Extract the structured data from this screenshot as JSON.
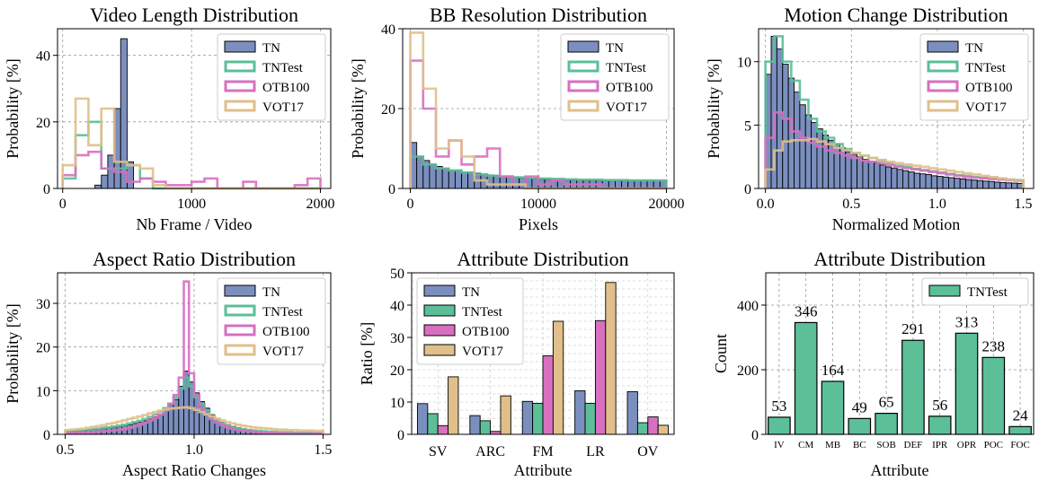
{
  "colors": {
    "TN": "#7b8fbf",
    "TNTest": "#5bbf98",
    "OTB100": "#d86fc0",
    "VOT17": "#e0bf8a"
  },
  "chart_data": [
    {
      "type": "histogram",
      "title": "Video Length Distribution",
      "xlabel": "Nb Frame / Video",
      "ylabel": "Probability [%]",
      "xlim": [
        -40,
        2080
      ],
      "ylim": [
        0,
        48
      ],
      "xticks": [
        0,
        1000,
        2000
      ],
      "yticks": [
        0,
        20,
        40
      ],
      "legend": [
        "TN",
        "TNTest",
        "OTB100",
        "VOT17"
      ],
      "legend_position": "top-right",
      "grid": true,
      "series": [
        {
          "name": "TN",
          "style": "filled",
          "bin_width": 50,
          "x_start": 250,
          "values": [
            1,
            4,
            10,
            24,
            45,
            8
          ]
        },
        {
          "name": "TNTest",
          "style": "step",
          "bin_width": 100,
          "x_start": 0,
          "values": [
            3,
            16,
            20,
            6,
            6,
            7,
            3,
            0,
            0,
            0,
            0,
            0,
            0,
            0,
            0,
            0,
            0,
            0,
            0,
            0
          ]
        },
        {
          "name": "OTB100",
          "style": "step",
          "bin_width": 100,
          "x_start": 0,
          "values": [
            4,
            10,
            11,
            6,
            5,
            2,
            3,
            2,
            1,
            1,
            2,
            3,
            0,
            0,
            2,
            0,
            0,
            0,
            1,
            3
          ]
        },
        {
          "name": "VOT17",
          "style": "step",
          "bin_width": 100,
          "x_start": 0,
          "values": [
            7,
            27,
            13,
            24,
            8,
            7,
            6,
            1,
            0,
            0,
            0,
            0,
            0,
            0,
            0,
            0,
            0,
            0,
            0,
            0
          ]
        }
      ]
    },
    {
      "type": "histogram",
      "title": "BB Resolution Distribution",
      "xlabel": "Pixels",
      "ylabel": "Probability [%]",
      "xlim": [
        -600,
        20600
      ],
      "ylim": [
        0,
        40
      ],
      "xticks": [
        0,
        10000,
        20000
      ],
      "yticks": [
        0,
        20,
        40
      ],
      "legend": [
        "TN",
        "TNTest",
        "OTB100",
        "VOT17"
      ],
      "legend_position": "top-right",
      "grid": true,
      "series": [
        {
          "name": "TN",
          "style": "filled",
          "bin_width": 500,
          "x_start": 0,
          "values": [
            11.5,
            8,
            7,
            6,
            5.5,
            5,
            4.5,
            4.5,
            4,
            4,
            3.8,
            3.6,
            3.4,
            3.2,
            3,
            3,
            2.8,
            2.6,
            2.5,
            2.4,
            2.3,
            2.3,
            2.2,
            2.2,
            2.1,
            2.1,
            2,
            2,
            2,
            2,
            2,
            2,
            2,
            2,
            2,
            2,
            2,
            2,
            2,
            2
          ]
        },
        {
          "name": "TNTest",
          "style": "step",
          "bin_width": 1000,
          "x_start": 0,
          "values": [
            8,
            6,
            5,
            4.5,
            4,
            3.5,
            3.2,
            3,
            2.8,
            2.6,
            2.5,
            2.4,
            2.3,
            2.2,
            2.2,
            2.1,
            2.1,
            2,
            2,
            2
          ]
        },
        {
          "name": "OTB100",
          "style": "step",
          "bin_width": 1000,
          "x_start": 0,
          "values": [
            32,
            20,
            8,
            12,
            6,
            8,
            10,
            3,
            1,
            3,
            1,
            2,
            1,
            1,
            1,
            0,
            0,
            0,
            0,
            0
          ]
        },
        {
          "name": "VOT17",
          "style": "step",
          "bin_width": 1000,
          "x_start": 0,
          "values": [
            39,
            25,
            10,
            12,
            8,
            2,
            1,
            1,
            1,
            0,
            0,
            0,
            0,
            0,
            0,
            0,
            0,
            0,
            0,
            0
          ]
        }
      ]
    },
    {
      "type": "histogram",
      "title": "Motion Change Distribution",
      "xlabel": "Normalized Motion",
      "ylabel": "Probability [%]",
      "xlim": [
        -0.04,
        1.56
      ],
      "ylim": [
        0,
        12.6
      ],
      "xticks": [
        0.0,
        0.5,
        1.0,
        1.5
      ],
      "yticks": [
        0,
        5,
        10
      ],
      "legend": [
        "TN",
        "TNTest",
        "OTB100",
        "VOT17"
      ],
      "legend_position": "top-right",
      "grid": true,
      "series": [
        {
          "name": "TN",
          "style": "filled",
          "bin_width": 0.0333,
          "x_start": 0,
          "values": [
            9,
            12,
            11,
            9.8,
            8.7,
            7.6,
            6.6,
            5.8,
            5.2,
            4.7,
            4.2,
            3.8,
            3.5,
            3.2,
            2.9,
            2.7,
            2.5,
            2.3,
            2.15,
            2.0,
            1.85,
            1.7,
            1.6,
            1.5,
            1.4,
            1.3,
            1.2,
            1.15,
            1.1,
            1.0,
            0.95,
            0.9,
            0.85,
            0.8,
            0.75,
            0.7,
            0.66,
            0.62,
            0.58,
            0.55,
            0.5,
            0.47,
            0.44,
            0.42,
            0.4
          ]
        },
        {
          "name": "TNTest",
          "style": "step",
          "bin_width": 0.05,
          "x_start": 0,
          "values": [
            10,
            12,
            10,
            8.5,
            7,
            5.5,
            4.5,
            4,
            3.5,
            3.1,
            2.8,
            2.6,
            2.4,
            2.2,
            2.0,
            1.8,
            1.7,
            1.55,
            1.45,
            1.35,
            1.25,
            1.15,
            1.05,
            1.0,
            0.9,
            0.85,
            0.8,
            0.75,
            0.7,
            0.65
          ]
        },
        {
          "name": "OTB100",
          "style": "step",
          "bin_width": 0.05,
          "x_start": 0,
          "values": [
            4,
            6,
            5.5,
            4.5,
            4,
            3.6,
            3.3,
            3.0,
            2.8,
            2.6,
            2.4,
            2.2,
            2.1,
            2.0,
            1.85,
            1.7,
            1.6,
            1.5,
            1.4,
            1.3,
            1.2,
            1.1,
            1.0,
            0.9,
            0.85,
            0.8,
            0.75,
            0.7,
            0.65,
            0.6
          ]
        },
        {
          "name": "VOT17",
          "style": "step",
          "bin_width": 0.05,
          "x_start": 0,
          "values": [
            1.5,
            3,
            3.7,
            3.8,
            3.8,
            3.9,
            3.7,
            3.5,
            3.2,
            3.0,
            2.8,
            2.6,
            2.4,
            2.25,
            2.1,
            2.0,
            1.9,
            1.8,
            1.7,
            1.6,
            1.5,
            1.4,
            1.3,
            1.2,
            1.1,
            1.0,
            0.9,
            0.8,
            0.7,
            0.6
          ]
        }
      ]
    },
    {
      "type": "histogram",
      "title": "Aspect Ratio Distribution",
      "xlabel": "Aspect Ratio Changes",
      "ylabel": "Probability [%]",
      "xlim": [
        0.47,
        1.53
      ],
      "ylim": [
        0,
        37
      ],
      "xticks": [
        0.5,
        1.0,
        1.5
      ],
      "yticks": [
        0,
        10,
        20,
        30
      ],
      "legend": [
        "TN",
        "TNTest",
        "OTB100",
        "VOT17"
      ],
      "legend_position": "top-right",
      "grid": true,
      "series": [
        {
          "name": "TN",
          "style": "filled",
          "bin_width": 0.02,
          "x_start": 0.5,
          "values": [
            0.6,
            0.7,
            0.8,
            0.9,
            1.0,
            1.1,
            1.2,
            1.3,
            1.5,
            1.6,
            1.8,
            2.0,
            2.2,
            2.5,
            2.8,
            3.1,
            3.5,
            4.0,
            4.6,
            5.5,
            6.8,
            8.0,
            11.0,
            14.5,
            12.0,
            9.5,
            7.5,
            6.0,
            4.5,
            3.5,
            2.8,
            2.2,
            1.8,
            1.5,
            1.2,
            1.0,
            0.8,
            0.7,
            0.6,
            0.5,
            0.5,
            0.4,
            0.4,
            0.3,
            0.3,
            0.3,
            0.3,
            0.2,
            0.2,
            0.2
          ]
        },
        {
          "name": "TNTest",
          "style": "step",
          "bin_width": 0.02,
          "x_start": 0.5,
          "values": [
            0.7,
            0.8,
            0.9,
            1.0,
            1.1,
            1.2,
            1.3,
            1.5,
            1.6,
            1.8,
            2.0,
            2.2,
            2.5,
            2.8,
            3.1,
            3.5,
            4.0,
            4.5,
            5.2,
            6.0,
            7.0,
            8.5,
            10.5,
            13.0,
            11.0,
            8.5,
            7.0,
            5.5,
            4.2,
            3.3,
            2.6,
            2.1,
            1.7,
            1.4,
            1.2,
            1.0,
            0.9,
            0.8,
            0.7,
            0.6,
            0.6,
            0.5,
            0.5,
            0.5,
            0.4,
            0.4,
            0.4,
            0.4,
            0.3,
            0.3
          ]
        },
        {
          "name": "OTB100",
          "style": "step",
          "bin_width": 0.02,
          "x_start": 0.5,
          "values": [
            0.3,
            0.3,
            0.3,
            0.4,
            0.4,
            0.5,
            0.6,
            0.7,
            0.8,
            0.9,
            1.0,
            1.2,
            1.5,
            1.8,
            2.2,
            2.7,
            3.2,
            3.8,
            4.5,
            5.5,
            7.0,
            9.0,
            13.0,
            35.0,
            14.0,
            9.0,
            6.0,
            4.5,
            3.5,
            2.7,
            2.1,
            1.6,
            1.3,
            1.0,
            0.8,
            0.7,
            0.6,
            0.5,
            0.4,
            0.4,
            0.3,
            0.3,
            0.3,
            0.2,
            0.2,
            0.2,
            0.2,
            0.2,
            0.2,
            0.2
          ]
        },
        {
          "name": "VOT17",
          "style": "step",
          "bin_width": 0.02,
          "x_start": 0.5,
          "values": [
            1.0,
            1.1,
            1.2,
            1.3,
            1.5,
            1.7,
            1.9,
            2.1,
            2.4,
            2.6,
            2.9,
            3.2,
            3.5,
            3.8,
            4.1,
            4.4,
            4.8,
            5.1,
            5.4,
            5.7,
            5.9,
            6.0,
            6.1,
            6.2,
            6.0,
            5.6,
            5.1,
            4.6,
            4.1,
            3.6,
            3.2,
            2.8,
            2.5,
            2.2,
            2.0,
            1.8,
            1.6,
            1.5,
            1.4,
            1.3,
            1.2,
            1.1,
            1.1,
            1.0,
            1.0,
            0.9,
            0.9,
            0.9,
            0.8,
            0.8
          ]
        }
      ]
    },
    {
      "type": "bar",
      "title": "Attribute Distribution",
      "xlabel": "Attribute",
      "ylabel": "Ratio [%]",
      "ylim": [
        0,
        50
      ],
      "yticks": [
        0,
        10,
        20,
        30,
        40,
        50
      ],
      "categories": [
        "SV",
        "ARC",
        "FM",
        "LR",
        "OV"
      ],
      "legend": [
        "TN",
        "TNTest",
        "OTB100",
        "VOT17"
      ],
      "legend_position": "top-left",
      "grid": true,
      "series": [
        {
          "name": "TN",
          "values": [
            9.5,
            5.8,
            10.2,
            13.5,
            13.2
          ]
        },
        {
          "name": "TNTest",
          "values": [
            6.4,
            4.2,
            9.6,
            9.6,
            3.6
          ]
        },
        {
          "name": "OTB100",
          "values": [
            2.7,
            0.9,
            24.3,
            35.2,
            5.4
          ]
        },
        {
          "name": "VOT17",
          "values": [
            17.8,
            11.9,
            35.0,
            47.0,
            2.8
          ]
        }
      ]
    },
    {
      "type": "bar",
      "title": "Attribute Distribution",
      "xlabel": "Attribute",
      "ylabel": "Count",
      "ylim": [
        0,
        500
      ],
      "yticks": [
        0,
        200,
        400
      ],
      "categories": [
        "IV",
        "CM",
        "MB",
        "BC",
        "SOB",
        "DEF",
        "IPR",
        "OPR",
        "POC",
        "FOC"
      ],
      "legend": [
        "TNTest"
      ],
      "legend_position": "top-right",
      "grid": true,
      "series": [
        {
          "name": "TNTest",
          "values": [
            53,
            346,
            164,
            49,
            65,
            291,
            56,
            313,
            238,
            24
          ]
        }
      ]
    }
  ]
}
